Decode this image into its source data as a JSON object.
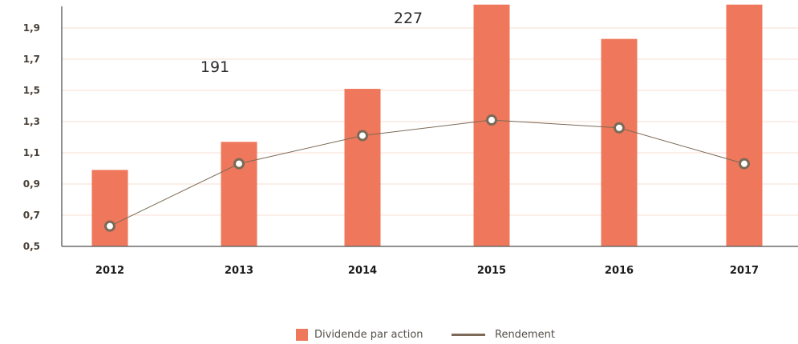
{
  "chart_data": {
    "type": "bar",
    "categories": [
      "2012",
      "2013",
      "2014",
      "2015",
      "2016",
      "2017"
    ],
    "series": [
      {
        "name": "Dividende par action",
        "kind": "bar",
        "values": [
          0.99,
          1.17,
          1.51,
          2.05,
          1.83,
          2.05
        ]
      },
      {
        "name": "Rendement",
        "kind": "line",
        "values": [
          0.63,
          1.03,
          1.21,
          1.31,
          1.26,
          1.03
        ]
      }
    ],
    "yticks": [
      "0,5",
      "0,7",
      "0,9",
      "1,1",
      "1,3",
      "1,5",
      "1,7",
      "1,9"
    ],
    "ylim": [
      0.5,
      2.05
    ],
    "annotations": [
      "191",
      "227"
    ],
    "grid": true,
    "legend_position": "bottom-center",
    "colors": {
      "bar": "#EF775B",
      "line": "#7A6A57",
      "grid": "#F8DCD2",
      "axis": "#6b6b6b"
    }
  }
}
